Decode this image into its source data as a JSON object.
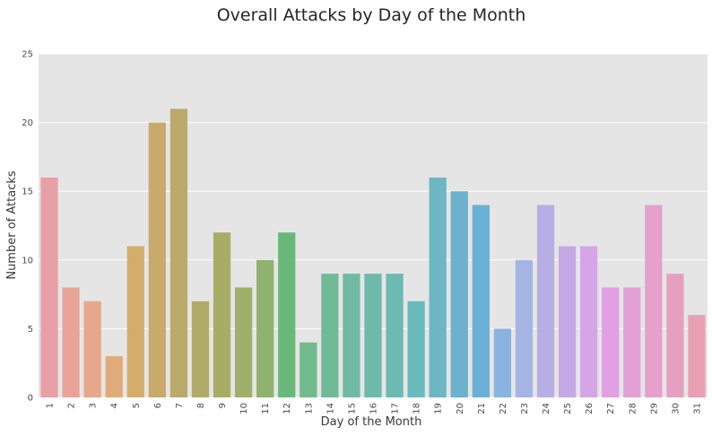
{
  "chart_data": {
    "type": "bar",
    "title": "Overall Attacks by Day of the Month",
    "xlabel": "Day of the Month",
    "ylabel": "Number of Attacks",
    "ylim": [
      0,
      25
    ],
    "yticks": [
      "0",
      "5",
      "10",
      "15",
      "20",
      "25"
    ],
    "grid": true,
    "categories": [
      "1",
      "2",
      "3",
      "4",
      "5",
      "6",
      "7",
      "8",
      "9",
      "10",
      "11",
      "12",
      "13",
      "14",
      "15",
      "16",
      "17",
      "18",
      "19",
      "20",
      "21",
      "22",
      "23",
      "24",
      "25",
      "26",
      "27",
      "28",
      "29",
      "30",
      "31"
    ],
    "values": [
      16,
      8,
      7,
      3,
      11,
      20,
      21,
      7,
      12,
      8,
      10,
      12,
      4,
      9,
      9,
      9,
      9,
      7,
      16,
      15,
      14,
      5,
      10,
      14,
      11,
      11,
      8,
      8,
      14,
      9,
      6
    ],
    "colors": [
      "#e8a0a6",
      "#e9a499",
      "#e6a88a",
      "#e0ab7a",
      "#d4ad6c",
      "#c8aa6a",
      "#bcaa6c",
      "#b0ab68",
      "#a8ad66",
      "#9eb06a",
      "#90b26e",
      "#6ab879",
      "#70ba8c",
      "#70ba98",
      "#70b9a3",
      "#6ebaaa",
      "#6cbab2",
      "#6abbbb",
      "#6db6c3",
      "#6cb2cc",
      "#6ab0d6",
      "#8ab3e0",
      "#a6b4e3",
      "#b7aee6",
      "#c5a8e6",
      "#d4a6e6",
      "#e0a0e3",
      "#e2a0d6",
      "#e5a0cb",
      "#e6a0bf",
      "#e7a1b2"
    ]
  }
}
